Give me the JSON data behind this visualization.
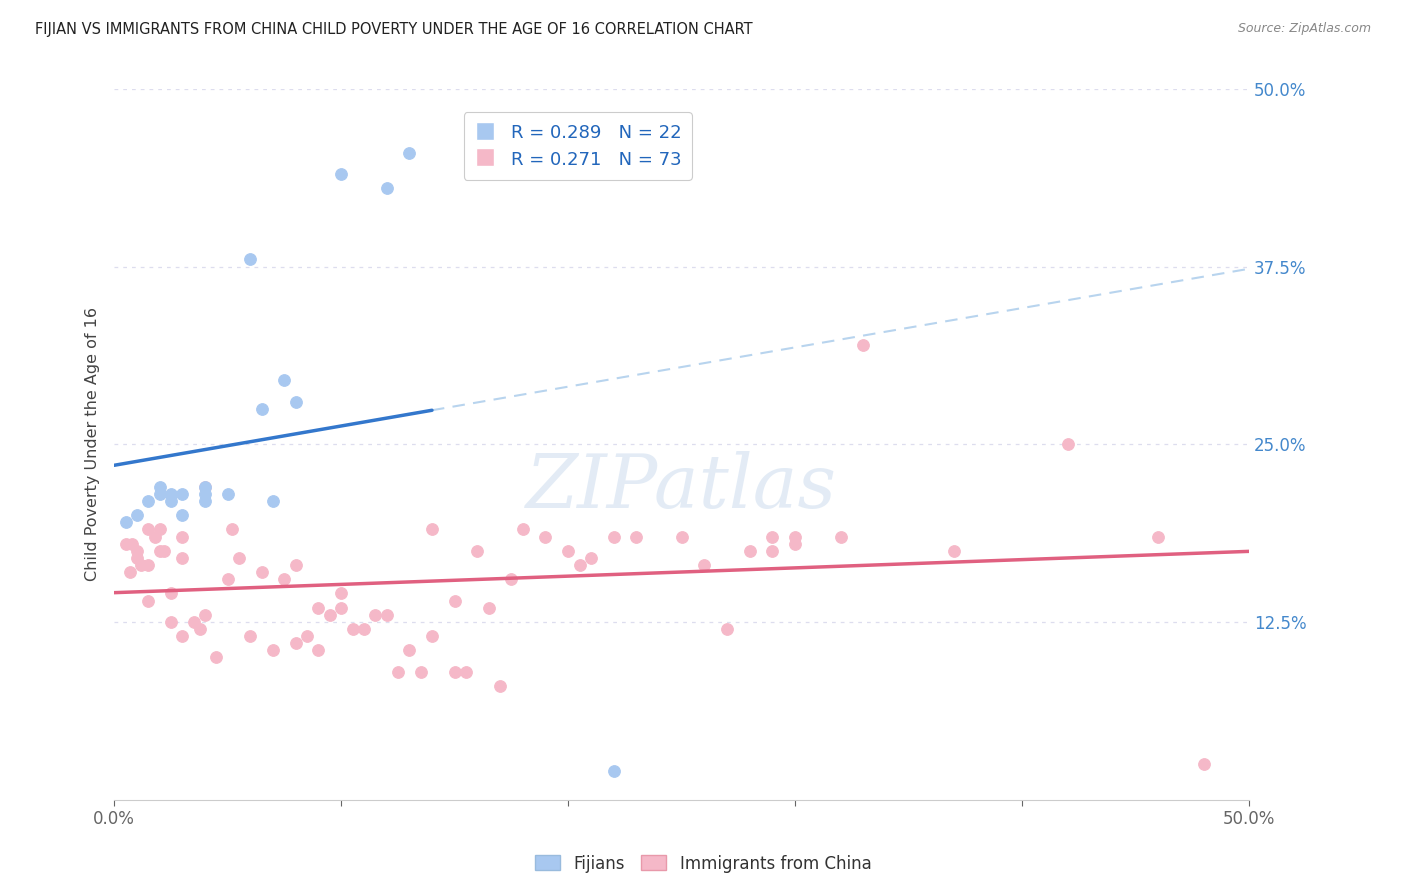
{
  "title": "FIJIAN VS IMMIGRANTS FROM CHINA CHILD POVERTY UNDER THE AGE OF 16 CORRELATION CHART",
  "source": "Source: ZipAtlas.com",
  "ylabel": "Child Poverty Under the Age of 16",
  "xlim": [
    0,
    0.5
  ],
  "ylim": [
    0,
    0.5
  ],
  "xtick_vals": [
    0.0,
    0.1,
    0.2,
    0.3,
    0.4,
    0.5
  ],
  "xticklabels": [
    "0.0%",
    "",
    "",
    "",
    "",
    "50.0%"
  ],
  "ytick_labels_right": [
    "50.0%",
    "37.5%",
    "25.0%",
    "12.5%",
    ""
  ],
  "ytick_values_right": [
    0.5,
    0.375,
    0.25,
    0.125,
    0.0
  ],
  "fijian_color": "#a8c8f0",
  "china_color": "#f5b8c8",
  "fijian_line_color": "#3377cc",
  "china_line_color": "#e06080",
  "dashed_line_color": "#b8d4ee",
  "legend_label_fijian": "Fijians",
  "legend_label_china": "Immigrants from China",
  "fijian_x": [
    0.005,
    0.01,
    0.015,
    0.02,
    0.02,
    0.025,
    0.025,
    0.03,
    0.03,
    0.04,
    0.04,
    0.04,
    0.05,
    0.06,
    0.065,
    0.07,
    0.075,
    0.08,
    0.1,
    0.12,
    0.13,
    0.22
  ],
  "fijian_y": [
    0.195,
    0.2,
    0.21,
    0.215,
    0.22,
    0.215,
    0.21,
    0.215,
    0.2,
    0.215,
    0.21,
    0.22,
    0.215,
    0.38,
    0.275,
    0.21,
    0.295,
    0.28,
    0.44,
    0.43,
    0.455,
    0.02
  ],
  "china_x": [
    0.005,
    0.007,
    0.008,
    0.01,
    0.01,
    0.012,
    0.015,
    0.015,
    0.015,
    0.018,
    0.02,
    0.02,
    0.022,
    0.025,
    0.025,
    0.03,
    0.03,
    0.03,
    0.035,
    0.038,
    0.04,
    0.04,
    0.045,
    0.05,
    0.052,
    0.055,
    0.06,
    0.065,
    0.07,
    0.075,
    0.08,
    0.08,
    0.085,
    0.09,
    0.09,
    0.095,
    0.1,
    0.1,
    0.105,
    0.11,
    0.115,
    0.12,
    0.125,
    0.13,
    0.135,
    0.14,
    0.14,
    0.15,
    0.15,
    0.155,
    0.16,
    0.165,
    0.17,
    0.175,
    0.18,
    0.19,
    0.2,
    0.205,
    0.21,
    0.22,
    0.23,
    0.25,
    0.26,
    0.27,
    0.28,
    0.29,
    0.29,
    0.3,
    0.3,
    0.32,
    0.33,
    0.37,
    0.42,
    0.46,
    0.48
  ],
  "china_y": [
    0.18,
    0.16,
    0.18,
    0.17,
    0.175,
    0.165,
    0.14,
    0.165,
    0.19,
    0.185,
    0.19,
    0.175,
    0.175,
    0.125,
    0.145,
    0.115,
    0.17,
    0.185,
    0.125,
    0.12,
    0.13,
    0.22,
    0.1,
    0.155,
    0.19,
    0.17,
    0.115,
    0.16,
    0.105,
    0.155,
    0.11,
    0.165,
    0.115,
    0.105,
    0.135,
    0.13,
    0.145,
    0.135,
    0.12,
    0.12,
    0.13,
    0.13,
    0.09,
    0.105,
    0.09,
    0.19,
    0.115,
    0.14,
    0.09,
    0.09,
    0.175,
    0.135,
    0.08,
    0.155,
    0.19,
    0.185,
    0.175,
    0.165,
    0.17,
    0.185,
    0.185,
    0.185,
    0.165,
    0.12,
    0.175,
    0.185,
    0.175,
    0.18,
    0.185,
    0.185,
    0.32,
    0.175,
    0.25,
    0.185,
    0.025
  ],
  "background_color": "#ffffff",
  "grid_color": "#ddddee"
}
